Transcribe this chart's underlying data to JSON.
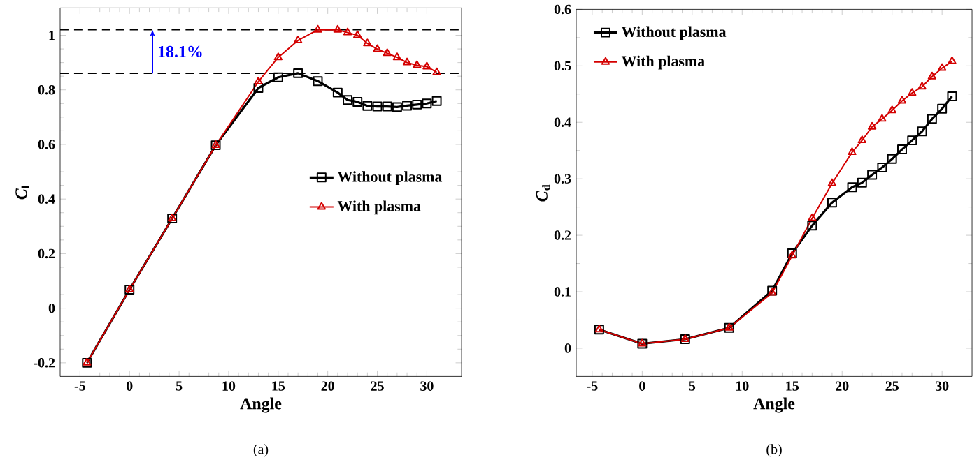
{
  "chart_data": [
    {
      "type": "line",
      "xlabel": "Angle",
      "ylabel": "*C*$_{l}$",
      "xlim": [
        -7,
        33.5
      ],
      "ylim": [
        -0.25,
        1.1
      ],
      "xticks": [
        -5,
        0,
        5,
        10,
        15,
        20,
        25,
        30
      ],
      "yticks": [
        -0.2,
        0,
        0.2,
        0.4,
        0.6,
        0.8,
        1
      ],
      "grid": false,
      "legend": "right",
      "x": [
        -4.3,
        0,
        4.3,
        8.7,
        13,
        15,
        17,
        19,
        21,
        22,
        23,
        24,
        25,
        26,
        27,
        28,
        29,
        30,
        31
      ],
      "series": [
        {
          "name": "Without plasma",
          "color": "#000000",
          "marker": "square",
          "values": [
            -0.2,
            0.068,
            0.329,
            0.597,
            0.807,
            0.846,
            0.861,
            0.832,
            0.79,
            0.763,
            0.756,
            0.741,
            0.739,
            0.739,
            0.737,
            0.742,
            0.746,
            0.75,
            0.759
          ]
        },
        {
          "name": "With plasma",
          "color": "#d40000",
          "marker": "triangle",
          "values": [
            -0.2,
            0.068,
            0.329,
            0.597,
            0.83,
            0.919,
            0.981,
            1.02,
            1.02,
            1.01,
            1.0,
            0.97,
            0.949,
            0.934,
            0.919,
            0.9,
            0.89,
            0.885,
            0.864
          ]
        }
      ],
      "ref_lines": [
        {
          "axis": "y",
          "value": 1.02,
          "color": "#000000",
          "line_style": "dashed"
        },
        {
          "axis": "y",
          "value": 0.86,
          "color": "#000000",
          "line_style": "dashed"
        }
      ],
      "annotations": [
        "18.1%",
        "(a)"
      ]
    },
    {
      "type": "line",
      "xlabel": "Angle",
      "ylabel": "*C*$_{d}$",
      "xlim": [
        -6.6,
        33
      ],
      "ylim": [
        -0.05,
        0.6
      ],
      "xticks": [
        -5,
        0,
        5,
        10,
        15,
        20,
        25,
        30
      ],
      "yticks": [
        0,
        0.1,
        0.2,
        0.3,
        0.4,
        0.5,
        0.6
      ],
      "grid": false,
      "legend": "top left",
      "x": [
        -4.3,
        0,
        4.3,
        8.7,
        13,
        15,
        17,
        19,
        21,
        22,
        23,
        24,
        25,
        26,
        27,
        28,
        29,
        30,
        31
      ],
      "series": [
        {
          "name": "Without plasma",
          "color": "#000000",
          "marker": "square",
          "values": [
            0.033,
            0.008,
            0.016,
            0.036,
            0.102,
            0.168,
            0.217,
            0.258,
            0.285,
            0.293,
            0.307,
            0.32,
            0.335,
            0.352,
            0.368,
            0.384,
            0.406,
            0.424,
            0.446
          ]
        },
        {
          "name": "With plasma",
          "color": "#d40000",
          "marker": "triangle",
          "values": [
            0.033,
            0.008,
            0.016,
            0.036,
            0.098,
            0.164,
            0.23,
            0.292,
            0.347,
            0.368,
            0.392,
            0.406,
            0.421,
            0.438,
            0.452,
            0.463,
            0.481,
            0.496,
            0.508
          ]
        }
      ],
      "annotations": [
        "(b)"
      ]
    }
  ]
}
